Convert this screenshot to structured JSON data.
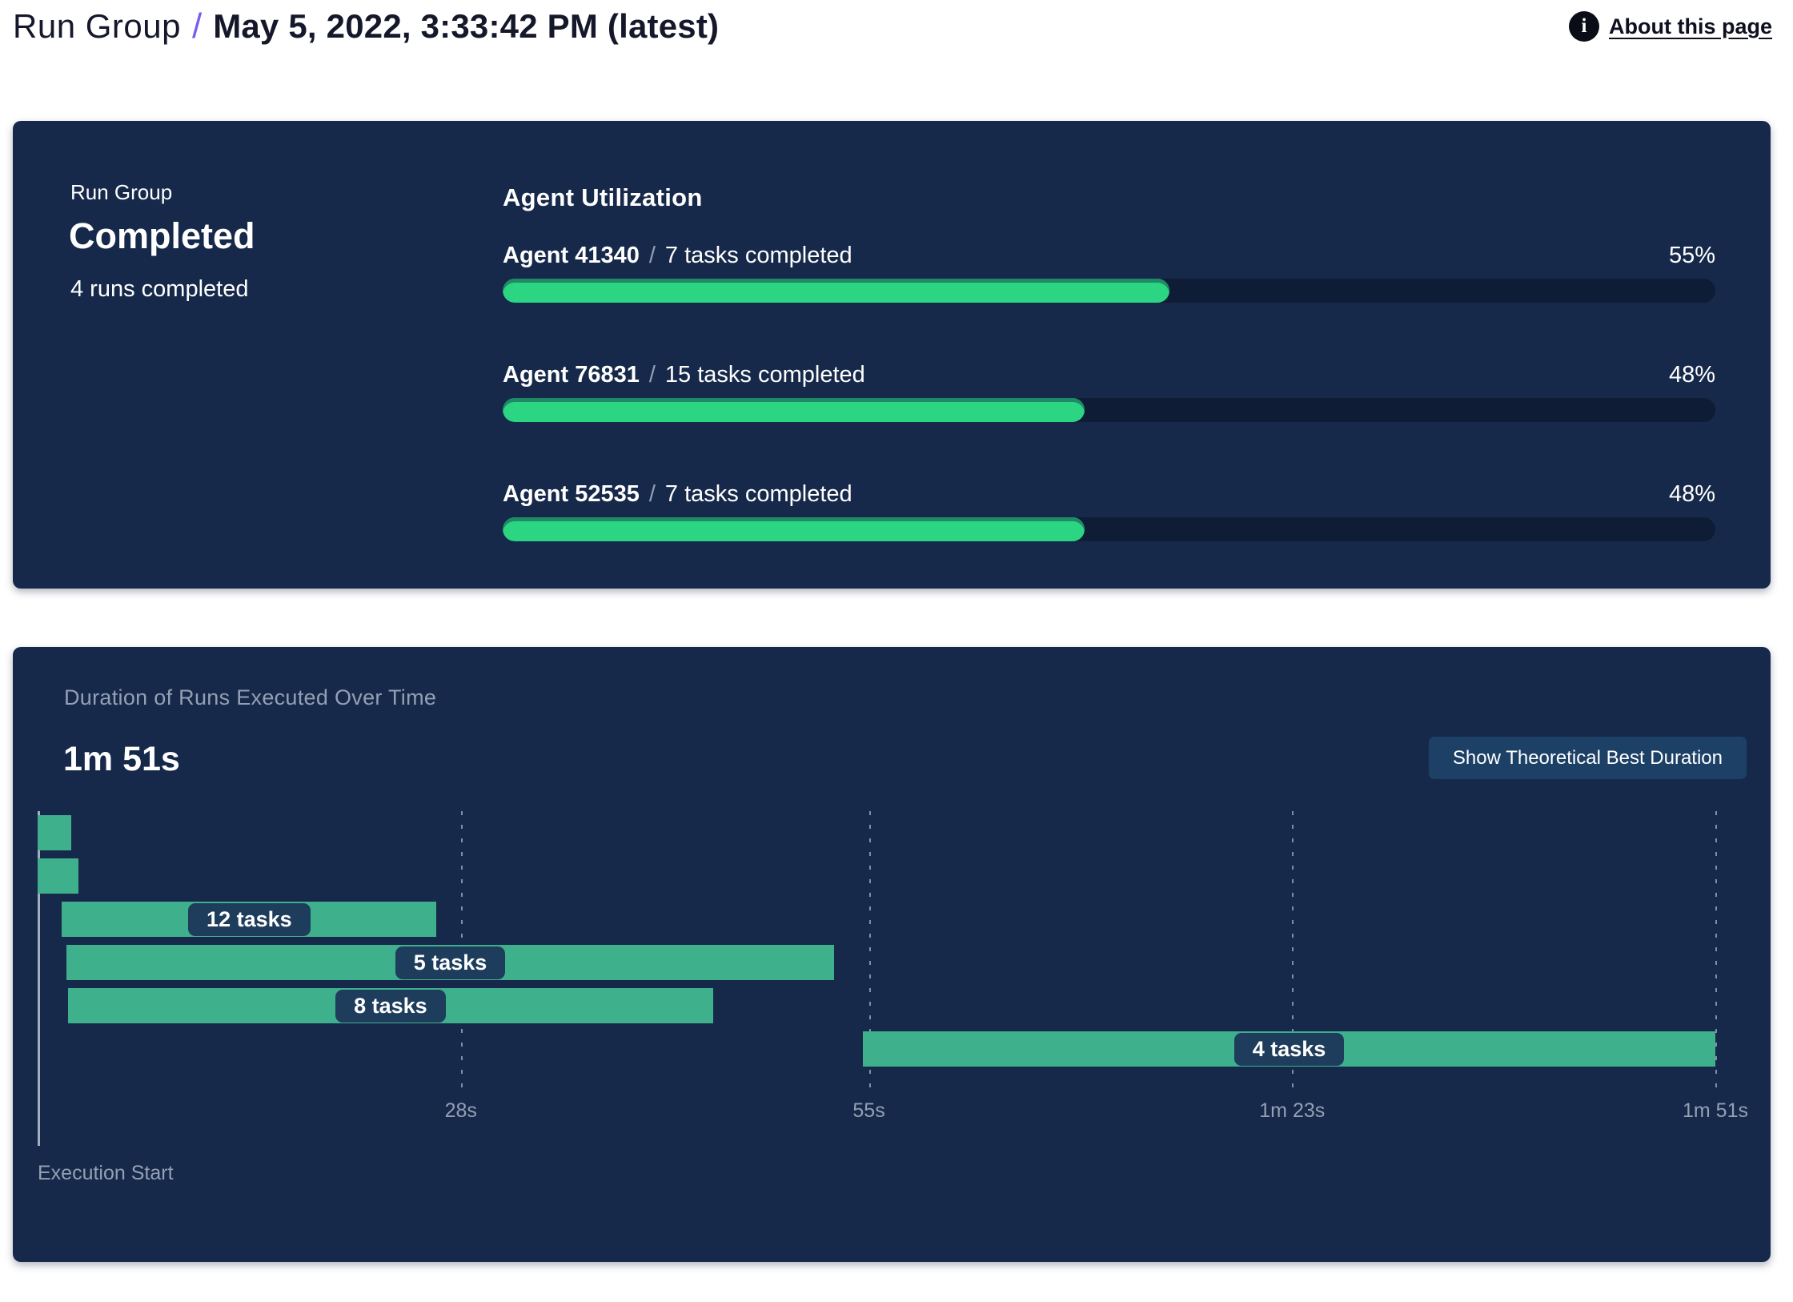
{
  "header": {
    "breadcrumb_root": "Run Group",
    "separator": "/",
    "title": "May 5, 2022, 3:33:42 PM (latest)",
    "about_label": "About this page",
    "info_icon": "i",
    "accent_color": "#7b5cf0"
  },
  "summary_card": {
    "label": "Run Group",
    "status": "Completed",
    "runs_completed": "4 runs completed",
    "utilization_title": "Agent Utilization",
    "separator": "/",
    "agents": [
      {
        "name": "Agent 41340",
        "tasks": "7 tasks completed",
        "percent": "55%",
        "value": 55
      },
      {
        "name": "Agent 76831",
        "tasks": "15 tasks completed",
        "percent": "48%",
        "value": 48
      },
      {
        "name": "Agent 52535",
        "tasks": "7 tasks completed",
        "percent": "48%",
        "value": 48
      }
    ]
  },
  "duration_card": {
    "title": "Duration of Runs Executed Over Time",
    "total_duration": "1m 51s",
    "button_label": "Show Theoretical Best Duration",
    "execution_start_label": "Execution Start"
  },
  "chart_data": {
    "type": "bar",
    "subtype": "gantt-timeline",
    "title": "Duration of Runs Executed Over Time",
    "total_duration_label": "1m 51s",
    "xlim": [
      0,
      111
    ],
    "x_unit": "seconds",
    "grid": "dashed-vertical",
    "x_ticks": [
      {
        "label": "28s",
        "t": 28
      },
      {
        "label": "55s",
        "t": 55
      },
      {
        "label": "1m 23s",
        "t": 83
      },
      {
        "label": "1m 51s",
        "t": 111
      }
    ],
    "rows": [
      {
        "label": "",
        "start_s": 0,
        "end_s": 2.2
      },
      {
        "label": "",
        "start_s": 0,
        "end_s": 2.7
      },
      {
        "label": "12 tasks",
        "start_s": 1.6,
        "end_s": 26.4
      },
      {
        "label": "5 tasks",
        "start_s": 1.9,
        "end_s": 52.7
      },
      {
        "label": "8 tasks",
        "start_s": 2.0,
        "end_s": 44.7
      },
      {
        "label": "4 tasks",
        "start_s": 54.6,
        "end_s": 111
      }
    ],
    "colors": {
      "bar": "#3fb08c",
      "label_pill_bg": "#1e3d5c",
      "progress_fill": "#2bd581",
      "progress_track": "#0e1c35",
      "card_bg": "#17294a",
      "muted_text": "#93a0b4"
    }
  }
}
